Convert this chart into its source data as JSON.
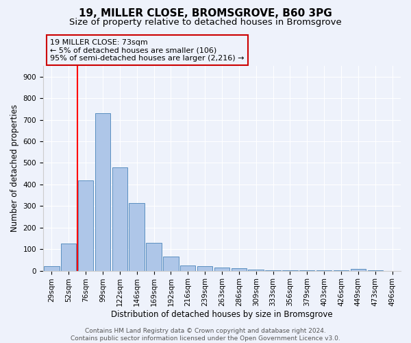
{
  "title1": "19, MILLER CLOSE, BROMSGROVE, B60 3PG",
  "title2": "Size of property relative to detached houses in Bromsgrove",
  "xlabel": "Distribution of detached houses by size in Bromsgrove",
  "ylabel": "Number of detached properties",
  "categories": [
    "29sqm",
    "52sqm",
    "76sqm",
    "99sqm",
    "122sqm",
    "146sqm",
    "169sqm",
    "192sqm",
    "216sqm",
    "239sqm",
    "263sqm",
    "286sqm",
    "309sqm",
    "333sqm",
    "356sqm",
    "379sqm",
    "403sqm",
    "426sqm",
    "449sqm",
    "473sqm",
    "496sqm"
  ],
  "values": [
    20,
    125,
    420,
    730,
    480,
    315,
    130,
    65,
    25,
    22,
    15,
    10,
    5,
    3,
    2,
    1,
    1,
    1,
    8,
    1,
    0
  ],
  "bar_color": "#aec6e8",
  "bar_edge_color": "#5a8fc0",
  "background_color": "#eef2fb",
  "grid_color": "#ffffff",
  "annotation_text": "19 MILLER CLOSE: 73sqm\n← 5% of detached houses are smaller (106)\n95% of semi-detached houses are larger (2,216) →",
  "annotation_box_color": "#cc0000",
  "ylim": [
    0,
    950
  ],
  "yticks": [
    0,
    100,
    200,
    300,
    400,
    500,
    600,
    700,
    800,
    900
  ],
  "footer": "Contains HM Land Registry data © Crown copyright and database right 2024.\nContains public sector information licensed under the Open Government Licence v3.0.",
  "title1_fontsize": 11,
  "title2_fontsize": 9.5,
  "xlabel_fontsize": 8.5,
  "ylabel_fontsize": 8.5,
  "tick_fontsize": 7.5,
  "annotation_fontsize": 8,
  "footer_fontsize": 6.5
}
